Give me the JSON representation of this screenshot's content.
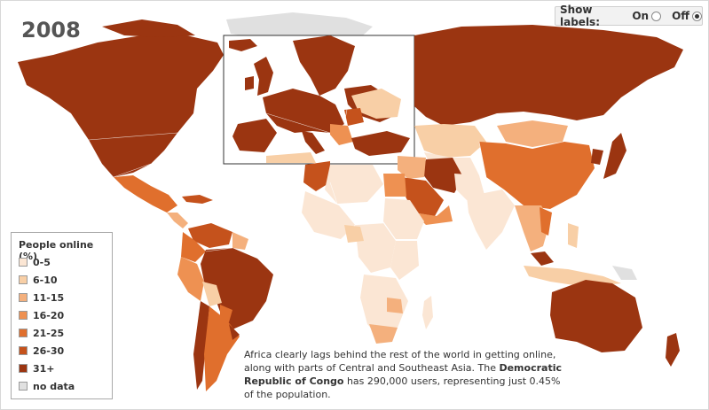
{
  "year": "2008",
  "labels_toggle": {
    "title": "Show labels:",
    "on_label": "On",
    "off_label": "Off",
    "selected": "Off"
  },
  "legend": {
    "title": "People online (%)",
    "items": [
      {
        "label": "0-5",
        "color": "#fbe6d4"
      },
      {
        "label": "6-10",
        "color": "#f8cfa6"
      },
      {
        "label": "11-15",
        "color": "#f4b07d"
      },
      {
        "label": "16-20",
        "color": "#ee9152"
      },
      {
        "label": "21-25",
        "color": "#e06f2d"
      },
      {
        "label": "26-30",
        "color": "#c5521c"
      },
      {
        "label": "31+",
        "color": "#9b3511"
      },
      {
        "label": "no data",
        "color": "#e0e0e0"
      }
    ]
  },
  "caption": {
    "part1": "Africa clearly lags behind the rest of the world in getting online, along with parts of Central and Southeast Asia. The ",
    "highlight": "Democratic Republic of Congo",
    "part2": " has 290,000 users, representing just 0.45% of the population."
  }
}
